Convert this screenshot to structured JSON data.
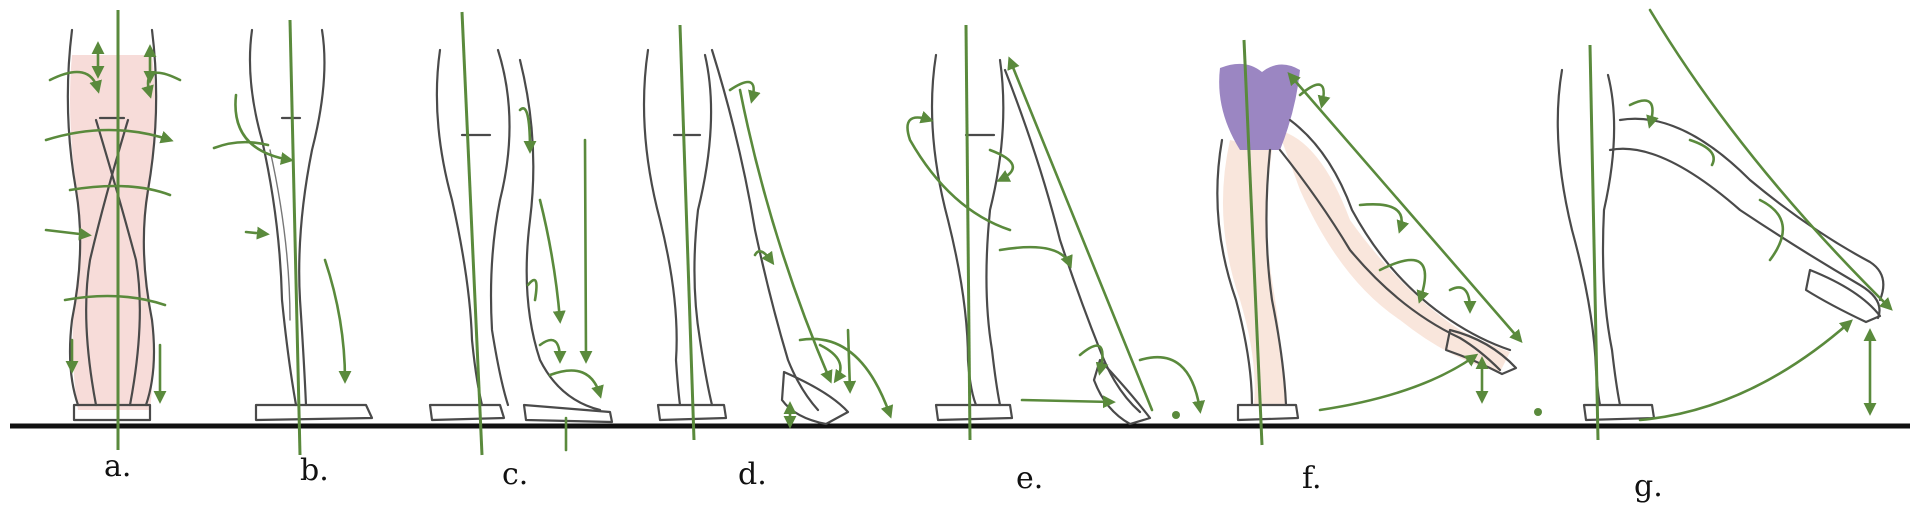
{
  "figures": [
    {
      "label": "a."
    },
    {
      "label": "b."
    },
    {
      "label": "c."
    },
    {
      "label": "d."
    },
    {
      "label": "e."
    },
    {
      "label": "f."
    },
    {
      "label": "g."
    }
  ],
  "colors": {
    "sketch": "#4a4a4a",
    "guide": "#5a8a3c",
    "ground": "#111111",
    "skin": "#f6d6d2",
    "skin_light": "#f9e6dc",
    "garment": "#9b86c2"
  }
}
